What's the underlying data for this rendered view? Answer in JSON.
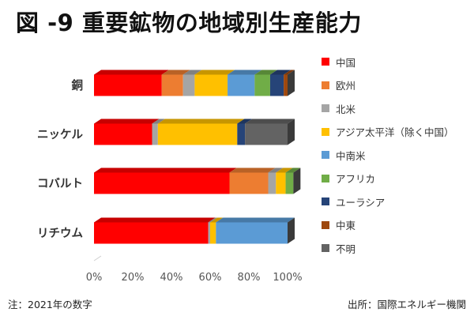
{
  "title": "図 -9 重要鉱物の地域別生産能力",
  "note": "注：2021年の数字",
  "source": "出所：国際エネルギー機関",
  "chart_data": {
    "type": "bar",
    "orientation": "horizontal",
    "stacked": "percent",
    "categories": [
      "銅",
      "ニッケル",
      "コバルト",
      "リチウム"
    ],
    "x_ticks": [
      "0%",
      "20%",
      "40%",
      "60%",
      "80%",
      "100%"
    ],
    "xlim": [
      0,
      100
    ],
    "legend_position": "right",
    "series": [
      {
        "name": "中国",
        "color": "#ff0000",
        "values": [
          35,
          30,
          70,
          59
        ]
      },
      {
        "name": "欧州",
        "color": "#ed7d31",
        "values": [
          11,
          0,
          20,
          0
        ]
      },
      {
        "name": "北米",
        "color": "#a5a5a5",
        "values": [
          6,
          3,
          4,
          1
        ]
      },
      {
        "name": "アジア太平洋（除く中国）",
        "color": "#ffc000",
        "values": [
          17,
          41,
          5,
          3
        ]
      },
      {
        "name": "中南米",
        "color": "#5b9bd5",
        "values": [
          14,
          0,
          0,
          37
        ]
      },
      {
        "name": "アフリカ",
        "color": "#70ad47",
        "values": [
          8,
          0,
          4,
          0
        ]
      },
      {
        "name": "ユーラシア",
        "color": "#264478",
        "values": [
          7,
          4,
          0,
          0
        ]
      },
      {
        "name": "中東",
        "color": "#9e480e",
        "values": [
          2,
          0,
          0,
          0
        ]
      },
      {
        "name": "不明",
        "color": "#636363",
        "values": [
          0,
          22,
          0,
          0
        ]
      }
    ]
  }
}
